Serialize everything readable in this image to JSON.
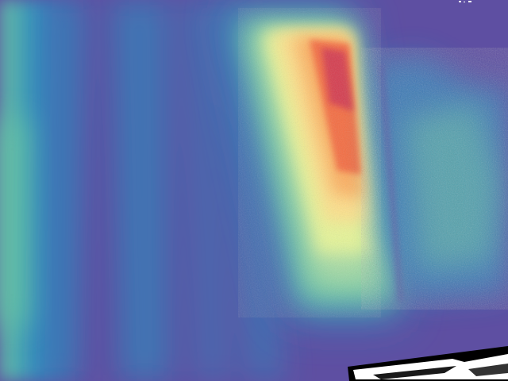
{
  "image": {
    "kind": "false-color depth / intensity map",
    "colormap": "spectral",
    "palette": {
      "background": "#5e4fa2",
      "low": "#3288bd",
      "mid_low": "#66c2a5",
      "mid": "#abdda4",
      "mid_high": "#e6f598",
      "peak_light": "#fee08b",
      "peak_orange": "#f46d43",
      "peak_red": "#d53e4f",
      "artifact": "#000000",
      "artifact_fill": "#ffffff"
    },
    "regions": [
      "left-edge-gradient",
      "vertical-blue-bands",
      "bright-hotspot",
      "right-speckle-region",
      "bottom-right-artifact"
    ]
  }
}
